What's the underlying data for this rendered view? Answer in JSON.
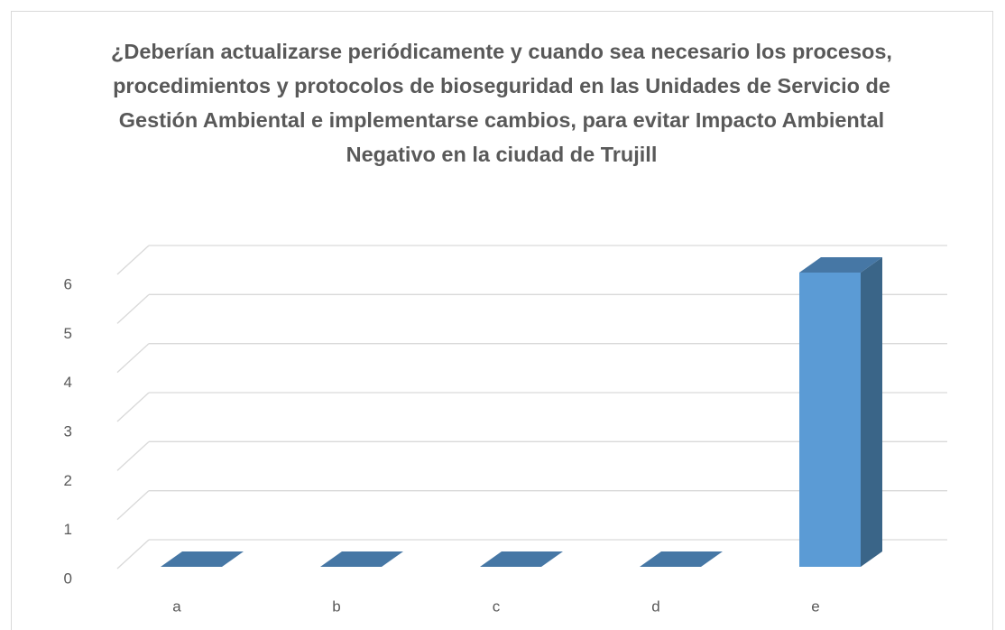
{
  "chart_data": {
    "type": "bar3d",
    "title": "¿Deberían actualizarse periódicamente y cuando sea necesario los procesos, procedimientos y protocolos de bioseguridad en las Unidades de Servicio de Gestión Ambiental e implementarse cambios, para evitar Impacto Ambiental Negativo en la ciudad de Trujill",
    "categories": [
      "a",
      "b",
      "c",
      "d",
      "e"
    ],
    "values": [
      0,
      0,
      0,
      0,
      6
    ],
    "color": "#5b9bd5",
    "ylim": [
      0,
      6
    ],
    "yticks": [
      0,
      1,
      2,
      3,
      4,
      5,
      6
    ],
    "grid": true
  }
}
